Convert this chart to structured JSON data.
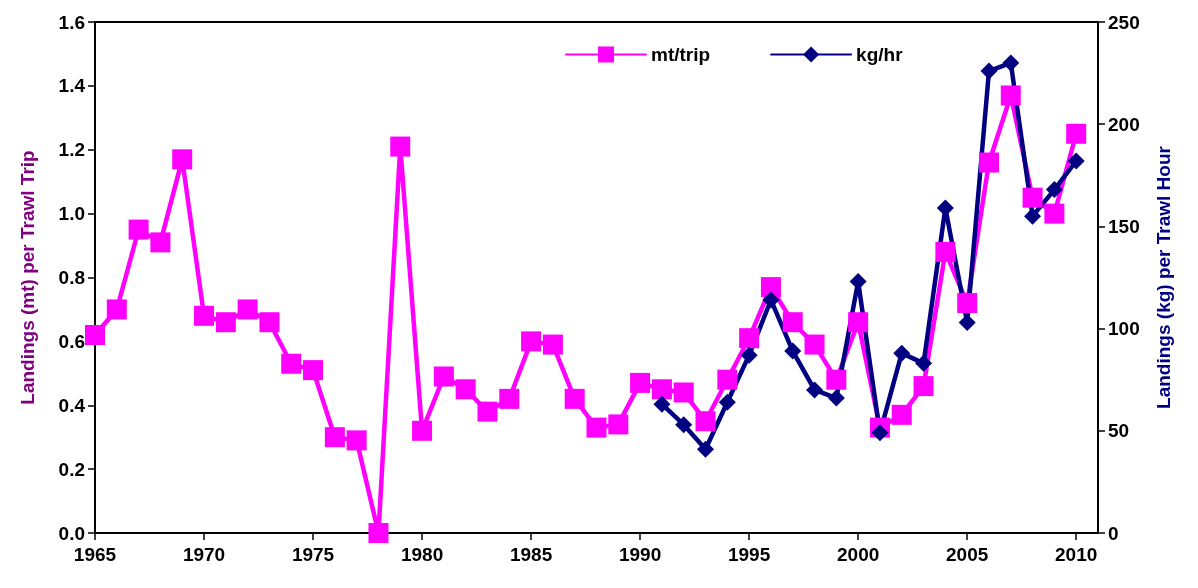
{
  "chart_data": {
    "type": "line",
    "ylabel": "Landings (mt) per Trawl Trip",
    "y2label": "Landings (kg) per Trawl Hour",
    "xlim": [
      1965,
      2011
    ],
    "xticks": [
      1965,
      1970,
      1975,
      1980,
      1985,
      1990,
      1995,
      2000,
      2005,
      2010
    ],
    "ylim": [
      0,
      1.6
    ],
    "yticks": [
      {
        "value": 0,
        "label": "0.0"
      },
      0.2,
      0.4,
      0.6,
      0.8,
      {
        "value": 1,
        "label": "1.0"
      },
      1.2,
      1.4,
      1.6
    ],
    "y2lim": [
      0,
      250
    ],
    "y2ticks": [
      0,
      50,
      100,
      150,
      200,
      250
    ],
    "grid": false,
    "legend": "top",
    "line_style": "solid",
    "series": [
      {
        "name": "mt/trip",
        "color": "#ff00ff",
        "marker": "square",
        "x": [
          1965,
          1966,
          1967,
          1968,
          1969,
          1970,
          1971,
          1972,
          1973,
          1974,
          1975,
          1976,
          1977,
          1978,
          1979,
          1980,
          1981,
          1982,
          1983,
          1984,
          1985,
          1986,
          1987,
          1988,
          1989,
          1990,
          1991,
          1992,
          1993,
          1994,
          1995,
          1996,
          1997,
          1998,
          1999,
          2000,
          2001,
          2002,
          2003,
          2004,
          2005,
          2006,
          2007,
          2008,
          2009,
          2010
        ],
        "values": [
          0.62,
          0.7,
          0.95,
          0.91,
          1.17,
          0.68,
          0.66,
          0.7,
          0.66,
          0.53,
          0.51,
          0.3,
          0.29,
          0.0,
          1.21,
          0.32,
          0.49,
          0.45,
          0.38,
          0.42,
          0.6,
          0.59,
          0.42,
          0.33,
          0.34,
          0.47,
          0.45,
          0.44,
          0.35,
          0.48,
          0.61,
          0.77,
          0.66,
          0.59,
          0.48,
          0.66,
          0.33,
          0.37,
          0.46,
          0.88,
          0.72,
          1.16,
          1.37,
          1.05,
          1.0,
          1.25
        ]
      },
      {
        "name": "kg/hr",
        "color": "#000080",
        "marker": "diamond",
        "axis": "y2",
        "x": [
          1991,
          1992,
          1993,
          1994,
          1995,
          1996,
          1997,
          1998,
          1999,
          2000,
          2001,
          2002,
          2003,
          2004,
          2005,
          2006,
          2007,
          2008,
          2009,
          2010
        ],
        "values": [
          63,
          53,
          41,
          64,
          87,
          114,
          89,
          70,
          66,
          123,
          49,
          88,
          83,
          159,
          103,
          226,
          230,
          155,
          168,
          182
        ]
      }
    ]
  }
}
